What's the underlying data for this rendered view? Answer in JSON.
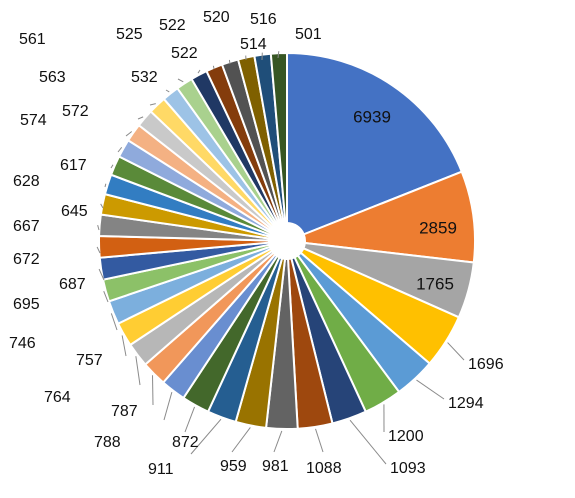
{
  "chart_data": {
    "type": "pie",
    "title": "",
    "values": [
      6939,
      2859,
      1765,
      1696,
      1294,
      1200,
      1093,
      1088,
      981,
      959,
      911,
      872,
      788,
      787,
      764,
      757,
      746,
      695,
      687,
      672,
      667,
      645,
      628,
      617,
      574,
      572,
      563,
      561,
      532,
      525,
      522,
      522,
      520,
      516,
      514,
      501
    ],
    "labels": [
      "6939",
      "2859",
      "1765",
      "1696",
      "1294",
      "1200",
      "1093",
      "1088",
      "981",
      "959",
      "911",
      "872",
      "788",
      "787",
      "764",
      "757",
      "746",
      "695",
      "687",
      "672",
      "667",
      "645",
      "628",
      "617",
      "574",
      "572",
      "563",
      "561",
      "532",
      "525",
      "522",
      "522",
      "520",
      "516",
      "514",
      "501"
    ],
    "colors": [
      "#4472C4",
      "#ED7D31",
      "#A5A5A5",
      "#FFC000",
      "#5B9BD5",
      "#70AD47",
      "#264478",
      "#9E480E",
      "#636363",
      "#997300",
      "#255E91",
      "#43682B",
      "#698ED0",
      "#F1975A",
      "#B7B7B7",
      "#FFCD33",
      "#7CAFDD",
      "#8CC168",
      "#335AA1",
      "#D26012",
      "#848484",
      "#CC9A00",
      "#327DC2",
      "#5A8A39",
      "#8FAADC",
      "#F4B183",
      "#C9C9C9",
      "#FFD966",
      "#9DC3E6",
      "#A9D18E",
      "#203864",
      "#843C0C",
      "#525252",
      "#7F6000",
      "#1F4E79",
      "#375623"
    ],
    "legend": "none",
    "data_labels": "outside with leader lines (largest slices inside)"
  }
}
